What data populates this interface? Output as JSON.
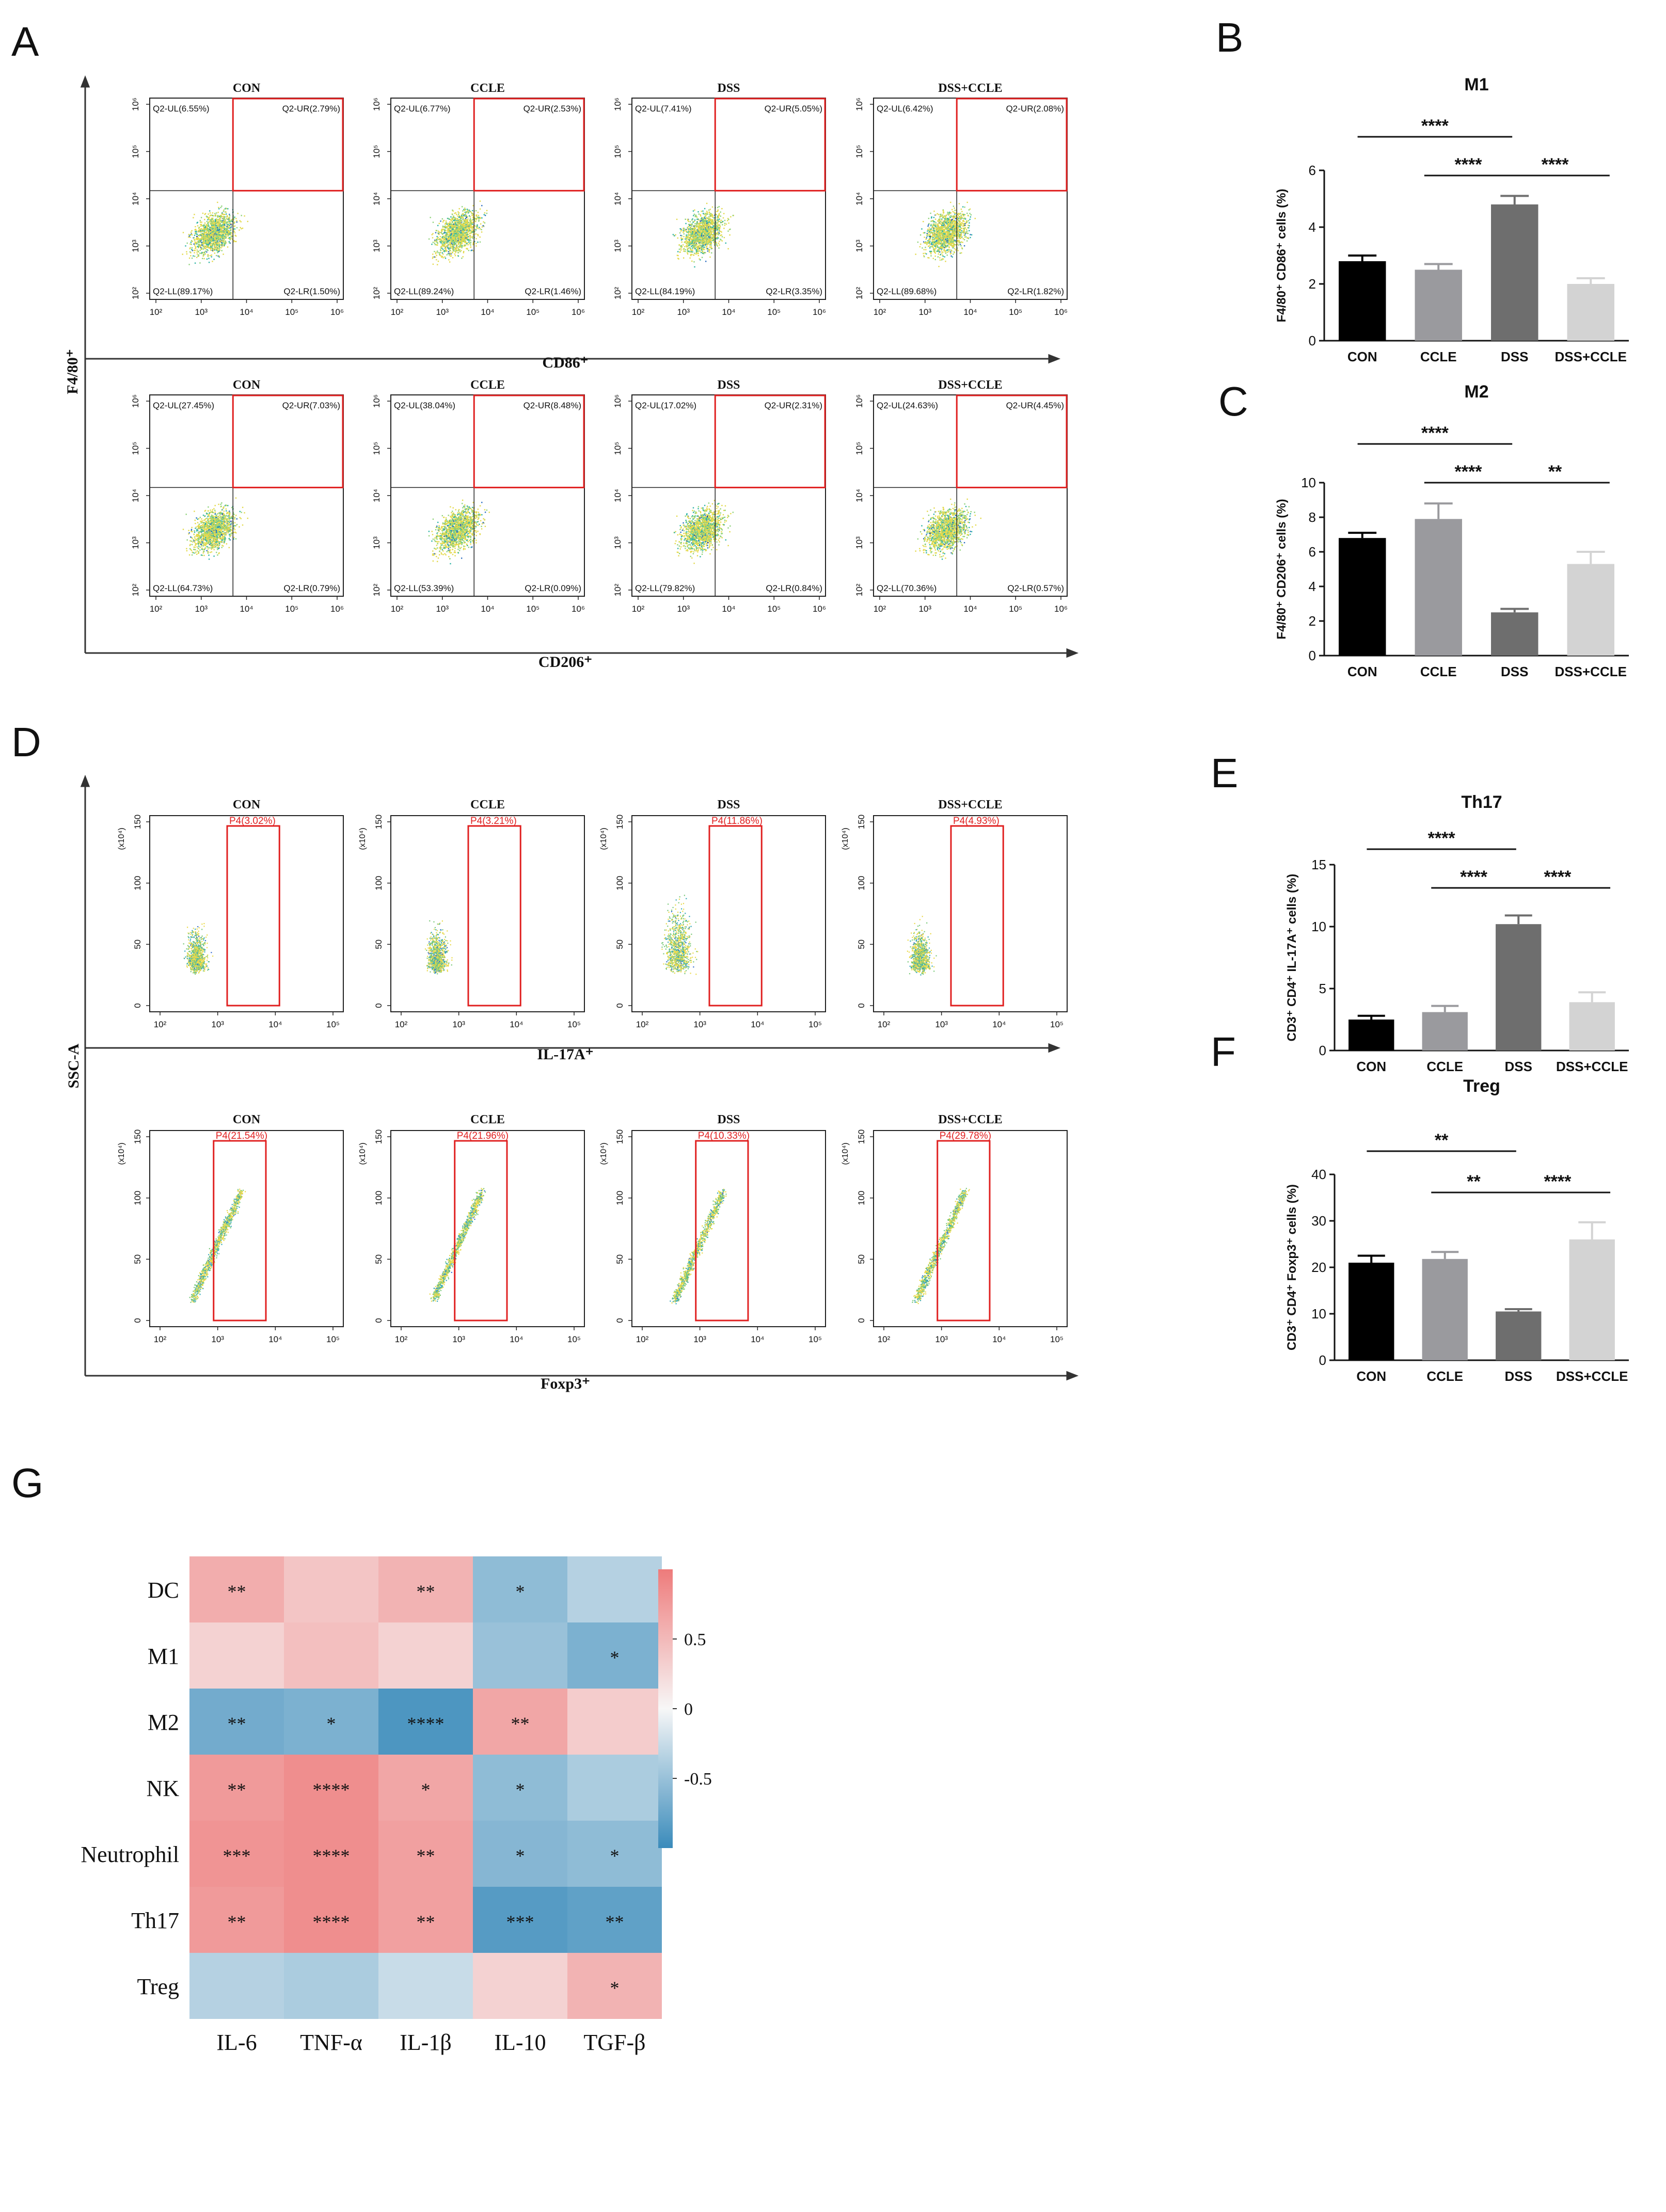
{
  "panel_letters": [
    "A",
    "B",
    "C",
    "D",
    "E",
    "F",
    "G"
  ],
  "flow_groups": [
    "CON",
    "CCLE",
    "DSS",
    "DSS+CCLE"
  ],
  "ticks": {
    "flow_x": [
      "10²",
      "10³",
      "10⁴",
      "10⁵",
      "10⁶"
    ],
    "flow_y": [
      "10²",
      "10³",
      "10⁴",
      "10⁵",
      "10⁶"
    ],
    "ssc_y": [
      "0",
      "50",
      "100",
      "150"
    ],
    "ssc_unit": "(x10⁴)",
    "ssc_x": [
      "10²",
      "10³",
      "10⁴",
      "10⁵"
    ]
  },
  "panel_A": {
    "y_axis_label": "F4/80⁺",
    "rows": [
      {
        "x_axis_label": "CD86⁺",
        "quadrants": [
          {
            "ul": "Q2-UL(6.55%)",
            "ur": "Q2-UR(2.79%)",
            "ll": "Q2-LL(89.17%)",
            "lr": "Q2-LR(1.50%)"
          },
          {
            "ul": "Q2-UL(6.77%)",
            "ur": "Q2-UR(2.53%)",
            "ll": "Q2-LL(89.24%)",
            "lr": "Q2-LR(1.46%)"
          },
          {
            "ul": "Q2-UL(7.41%)",
            "ur": "Q2-UR(5.05%)",
            "ll": "Q2-LL(84.19%)",
            "lr": "Q2-LR(3.35%)"
          },
          {
            "ul": "Q2-UL(6.42%)",
            "ur": "Q2-UR(2.08%)",
            "ll": "Q2-LL(89.68%)",
            "lr": "Q2-LR(1.82%)"
          }
        ]
      },
      {
        "x_axis_label": "CD206⁺",
        "quadrants": [
          {
            "ul": "Q2-UL(27.45%)",
            "ur": "Q2-UR(7.03%)",
            "ll": "Q2-LL(64.73%)",
            "lr": "Q2-LR(0.79%)"
          },
          {
            "ul": "Q2-UL(38.04%)",
            "ur": "Q2-UR(8.48%)",
            "ll": "Q2-LL(53.39%)",
            "lr": "Q2-LR(0.09%)"
          },
          {
            "ul": "Q2-UL(17.02%)",
            "ur": "Q2-UR(2.31%)",
            "ll": "Q2-LL(79.82%)",
            "lr": "Q2-LR(0.84%)"
          },
          {
            "ul": "Q2-UL(24.63%)",
            "ur": "Q2-UR(4.45%)",
            "ll": "Q2-LL(70.36%)",
            "lr": "Q2-LR(0.57%)"
          }
        ]
      }
    ]
  },
  "panel_D": {
    "y_axis_label": "SSC-A",
    "rows": [
      {
        "x_axis_label": "IL-17A⁺",
        "gates": [
          "P4(3.02%)",
          "P4(3.21%)",
          "P4(11.86%)",
          "P4(4.93%)"
        ]
      },
      {
        "x_axis_label": "Foxp3⁺",
        "gates": [
          "P4(21.54%)",
          "P4(21.96%)",
          "P4(10.33%)",
          "P4(29.78%)"
        ]
      }
    ]
  },
  "chart_data": [
    {
      "id": "B",
      "type": "bar",
      "title": "M1",
      "ylabel": "F4/80⁺ CD86⁺ cells (%)",
      "ylim": [
        0,
        6
      ],
      "yticks": [
        "0",
        "2",
        "4",
        "6"
      ],
      "categories": [
        "CON",
        "CCLE",
        "DSS",
        "DSS+CCLE"
      ],
      "values": [
        2.8,
        2.5,
        4.8,
        2.0
      ],
      "errors": [
        0.2,
        0.2,
        0.3,
        0.2
      ],
      "colors": [
        "#000000",
        "#9a9a9e",
        "#6e6e6e",
        "#d3d3d3"
      ],
      "significance": [
        {
          "from": 0,
          "to": 2,
          "label": "****"
        },
        {
          "from": 1,
          "to": 2,
          "label": "****"
        },
        {
          "from": 2,
          "to": 3,
          "label": "****"
        }
      ]
    },
    {
      "id": "C",
      "type": "bar",
      "title": "M2",
      "ylabel": "F4/80⁺ CD206⁺ cells (%)",
      "ylim": [
        0,
        10
      ],
      "yticks": [
        "0",
        "2",
        "4",
        "6",
        "8",
        "10"
      ],
      "categories": [
        "CON",
        "CCLE",
        "DSS",
        "DSS+CCLE"
      ],
      "values": [
        6.8,
        7.9,
        2.5,
        5.3
      ],
      "errors": [
        0.3,
        0.9,
        0.2,
        0.7
      ],
      "colors": [
        "#000000",
        "#9a9a9e",
        "#6e6e6e",
        "#d3d3d3"
      ],
      "significance": [
        {
          "from": 0,
          "to": 2,
          "label": "****"
        },
        {
          "from": 1,
          "to": 2,
          "label": "****"
        },
        {
          "from": 2,
          "to": 3,
          "label": "**"
        }
      ]
    },
    {
      "id": "E",
      "type": "bar",
      "title": "Th17",
      "ylabel": "CD3⁺ CD4⁺ IL-17A⁺ cells (%)",
      "ylim": [
        0,
        15
      ],
      "yticks": [
        "0",
        "5",
        "10",
        "15"
      ],
      "categories": [
        "CON",
        "CCLE",
        "DSS",
        "DSS+CCLE"
      ],
      "values": [
        2.5,
        3.1,
        10.2,
        3.9
      ],
      "errors": [
        0.3,
        0.5,
        0.7,
        0.8
      ],
      "colors": [
        "#000000",
        "#9a9a9e",
        "#6e6e6e",
        "#d3d3d3"
      ],
      "significance": [
        {
          "from": 0,
          "to": 2,
          "label": "****"
        },
        {
          "from": 1,
          "to": 2,
          "label": "****"
        },
        {
          "from": 2,
          "to": 3,
          "label": "****"
        }
      ]
    },
    {
      "id": "F",
      "type": "bar",
      "title": "Treg",
      "ylabel": "CD3⁺ CD4⁺ Foxp3⁺ cells (%)",
      "ylim": [
        0,
        40
      ],
      "yticks": [
        "0",
        "10",
        "20",
        "30",
        "40"
      ],
      "categories": [
        "CON",
        "CCLE",
        "DSS",
        "DSS+CCLE"
      ],
      "values": [
        21.0,
        21.8,
        10.5,
        26.0
      ],
      "errors": [
        1.5,
        1.5,
        0.5,
        3.7
      ],
      "colors": [
        "#000000",
        "#9a9a9e",
        "#6e6e6e",
        "#d3d3d3"
      ],
      "significance": [
        {
          "from": 0,
          "to": 2,
          "label": "**"
        },
        {
          "from": 1,
          "to": 2,
          "label": "**"
        },
        {
          "from": 2,
          "to": 3,
          "label": "****"
        }
      ]
    },
    {
      "id": "G",
      "type": "heatmap",
      "rows": [
        "DC",
        "M1",
        "M2",
        "NK",
        "Neutrophil",
        "Th17",
        "Treg"
      ],
      "columns": [
        "IL-6",
        "TNF-α",
        "IL-1β",
        "IL-10",
        "TGF-β"
      ],
      "values": [
        [
          0.6,
          0.4,
          0.55,
          -0.55,
          -0.35
        ],
        [
          0.3,
          0.45,
          0.3,
          -0.5,
          -0.65
        ],
        [
          -0.7,
          -0.65,
          -0.9,
          0.65,
          0.35
        ],
        [
          0.75,
          0.85,
          0.65,
          -0.55,
          -0.4
        ],
        [
          0.8,
          0.85,
          0.7,
          -0.6,
          -0.55
        ],
        [
          0.75,
          0.85,
          0.7,
          -0.85,
          -0.8
        ],
        [
          -0.35,
          -0.4,
          -0.25,
          0.3,
          0.55
        ]
      ],
      "stars": [
        [
          "**",
          "",
          "**",
          "*",
          ""
        ],
        [
          "",
          "",
          "",
          "",
          "*"
        ],
        [
          "**",
          "*",
          "****",
          "**",
          ""
        ],
        [
          "**",
          "****",
          "*",
          "*",
          ""
        ],
        [
          "***",
          "****",
          "**",
          "*",
          "*"
        ],
        [
          "**",
          "****",
          "**",
          "***",
          "**"
        ],
        [
          "",
          "",
          "",
          "",
          "*"
        ]
      ],
      "colorbar_ticks": [
        "0.5",
        "0",
        "-0.5"
      ],
      "colorbar_range": [
        -1,
        1
      ],
      "colormap": {
        "low": "#3a8bbb",
        "mid": "#f7f7f7",
        "high": "#ee7b7b"
      }
    }
  ]
}
